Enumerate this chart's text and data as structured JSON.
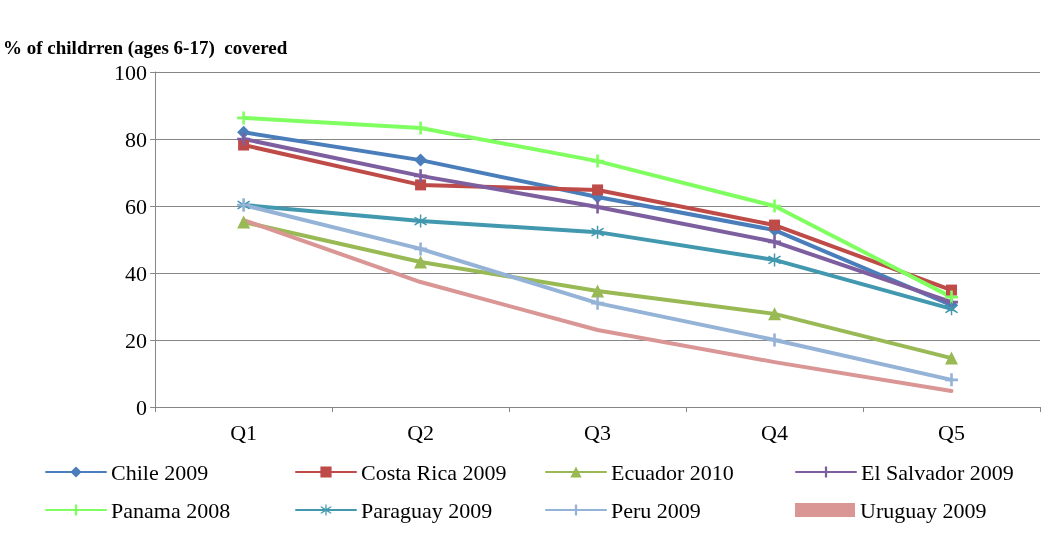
{
  "chart_data": {
    "type": "line",
    "ylabel": "% of childrren (ages 6-17)  covered",
    "categories": [
      "Q1",
      "Q2",
      "Q3",
      "Q4",
      "Q5"
    ],
    "ylim": [
      0,
      100
    ],
    "yticks": [
      0,
      20,
      40,
      60,
      80,
      100
    ],
    "grid": "y",
    "legend": "bottom",
    "line_style": "solid",
    "series": [
      {
        "name": "Chile 2009",
        "color": "#4a7ebb",
        "marker": "diamond",
        "values": [
          82,
          73.7,
          62.7,
          52.8,
          30.4
        ]
      },
      {
        "name": "Costa Rica 2009",
        "color": "#be4b48",
        "marker": "square",
        "values": [
          78.2,
          66.3,
          64.8,
          54.3,
          34.9
        ]
      },
      {
        "name": "Ecuador 2010",
        "color": "#98b954",
        "marker": "triangle",
        "values": [
          55.2,
          43.3,
          34.6,
          27.8,
          14.6
        ]
      },
      {
        "name": "El Salvador 2009",
        "color": "#7d5fa0",
        "marker": "cross",
        "values": [
          80,
          69,
          59.7,
          49.3,
          31.3
        ]
      },
      {
        "name": "Panama 2008",
        "color": "#80ff60",
        "marker": "cross",
        "values": [
          86.3,
          83.3,
          73.4,
          60,
          32.8
        ]
      },
      {
        "name": "Paraguay 2009",
        "color": "#4198af",
        "marker": "star",
        "values": [
          60.3,
          55.5,
          52.2,
          43.9,
          29.3
        ]
      },
      {
        "name": "Peru 2009",
        "color": "#95b3d7",
        "marker": "cross",
        "values": [
          60.3,
          47.2,
          31,
          20,
          8.1
        ]
      },
      {
        "name": "Uruguay 2009",
        "color": "#d99694",
        "marker": "none",
        "values": [
          55.8,
          37.3,
          23,
          13.4,
          4.8
        ]
      }
    ]
  }
}
